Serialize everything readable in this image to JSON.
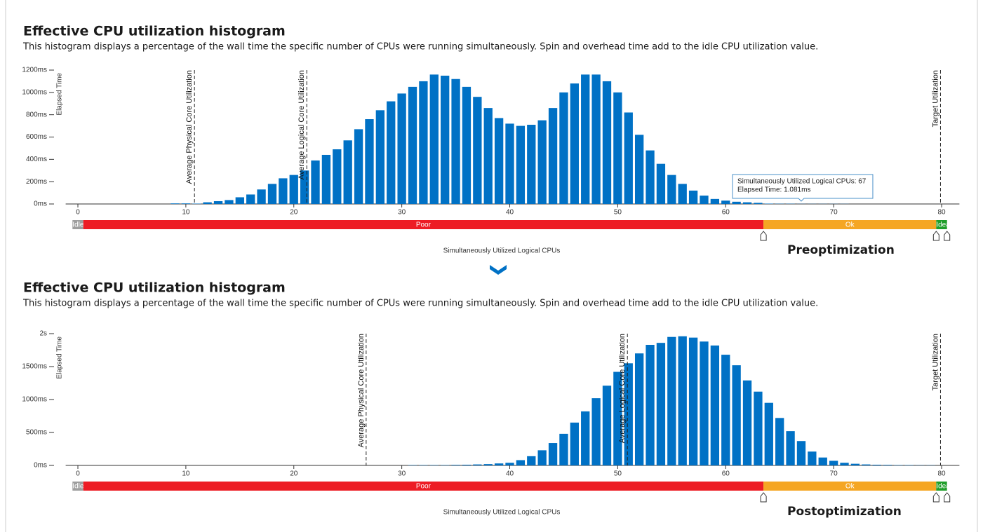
{
  "chart_data": [
    {
      "type": "bar",
      "title": "Effective CPU utilization histogram",
      "subtitle": "This histogram displays a percentage of the wall time the specific number of CPUs were running simultaneously. Spin and overhead time add to the idle CPU utilization value.",
      "xlabel": "Simultaneously Utilized Logical CPUs",
      "ylabel": "Elapsed Time",
      "caption": "Preoptimization",
      "color": "#0071c5",
      "x": [
        9,
        10,
        11,
        12,
        13,
        14,
        15,
        16,
        17,
        18,
        19,
        20,
        21,
        22,
        23,
        24,
        25,
        26,
        27,
        28,
        29,
        30,
        31,
        32,
        33,
        34,
        35,
        36,
        37,
        38,
        39,
        40,
        41,
        42,
        43,
        44,
        45,
        46,
        47,
        48,
        49,
        50,
        51,
        52,
        53,
        54,
        55,
        56,
        57,
        58,
        59,
        60,
        61,
        62,
        63,
        64,
        65,
        66,
        67,
        68,
        69,
        70,
        71
      ],
      "values": [
        5,
        5,
        3,
        15,
        25,
        35,
        60,
        85,
        130,
        180,
        230,
        260,
        300,
        390,
        440,
        490,
        570,
        670,
        760,
        840,
        920,
        990,
        1050,
        1100,
        1160,
        1150,
        1120,
        1050,
        960,
        860,
        770,
        720,
        700,
        710,
        750,
        860,
        1000,
        1080,
        1160,
        1160,
        1100,
        1000,
        820,
        620,
        480,
        360,
        260,
        180,
        120,
        75,
        45,
        30,
        20,
        15,
        10,
        3,
        2,
        2,
        1.081,
        1,
        1,
        1,
        1
      ],
      "xlim": [
        -1,
        81
      ],
      "xticks": [
        0,
        10,
        20,
        30,
        40,
        50,
        60,
        70,
        80
      ],
      "ylim": [
        0,
        1200
      ],
      "yticks": [
        {
          "value": 0,
          "label": "0ms"
        },
        {
          "value": 200,
          "label": "200ms"
        },
        {
          "value": 400,
          "label": "400ms"
        },
        {
          "value": 600,
          "label": "600ms"
        },
        {
          "value": 800,
          "label": "800ms"
        },
        {
          "value": 1000,
          "label": "1000ms"
        },
        {
          "value": 1200,
          "label": "1200ms"
        }
      ],
      "annotations": [
        {
          "x": 10.8,
          "label": "Average Physical Core Utilization"
        },
        {
          "x": 21.2,
          "label": "Average Logical Core Utilization"
        },
        {
          "x": 79.9,
          "label": "Target Utilization"
        }
      ],
      "bands": [
        {
          "label": "Idle",
          "from": -0.5,
          "to": 0.5,
          "color": "#9e9e9e"
        },
        {
          "label": "Poor",
          "from": 0.5,
          "to": 63.5,
          "color": "#ed1c24"
        },
        {
          "label": "Ok",
          "from": 63.5,
          "to": 79.5,
          "color": "#f5a623"
        },
        {
          "label": "Ideal",
          "from": 79.5,
          "to": 80.5,
          "color": "#1f9e2a"
        }
      ],
      "tooltip": {
        "x": 67,
        "lines": [
          "Simultaneously Utilized Logical CPUs: 67",
          "Elapsed Time: 1.081ms"
        ]
      }
    },
    {
      "type": "bar",
      "title": "Effective CPU utilization histogram",
      "subtitle": "This histogram displays a percentage of the wall time the specific number of CPUs were running simultaneously. Spin and overhead time add to the idle CPU utilization value.",
      "xlabel": "Simultaneously Utilized Logical CPUs",
      "ylabel": "Elapsed Time",
      "caption": "Postoptimization",
      "color": "#0071c5",
      "x": [
        31,
        32,
        33,
        34,
        35,
        36,
        37,
        38,
        39,
        40,
        41,
        42,
        43,
        44,
        45,
        46,
        47,
        48,
        49,
        50,
        51,
        52,
        53,
        54,
        55,
        56,
        57,
        58,
        59,
        60,
        61,
        62,
        63,
        64,
        65,
        66,
        67,
        68,
        69,
        70,
        71,
        72,
        73,
        74,
        75,
        76,
        77,
        78,
        79
      ],
      "values": [
        5,
        5,
        5,
        5,
        8,
        10,
        15,
        20,
        30,
        40,
        80,
        140,
        230,
        340,
        480,
        650,
        820,
        1020,
        1210,
        1420,
        1550,
        1700,
        1830,
        1860,
        1950,
        1960,
        1940,
        1880,
        1820,
        1680,
        1520,
        1290,
        1120,
        950,
        720,
        520,
        370,
        210,
        120,
        70,
        40,
        25,
        15,
        10,
        8,
        5,
        5,
        3,
        3
      ],
      "xlim": [
        -1,
        81
      ],
      "xticks": [
        0,
        10,
        20,
        30,
        40,
        50,
        60,
        70,
        80
      ],
      "ylim": [
        0,
        2000
      ],
      "yticks": [
        {
          "value": 0,
          "label": "0ms"
        },
        {
          "value": 500,
          "label": "500ms"
        },
        {
          "value": 1000,
          "label": "1000ms"
        },
        {
          "value": 1500,
          "label": "1500ms"
        },
        {
          "value": 2000,
          "label": "2s"
        }
      ],
      "annotations": [
        {
          "x": 26.7,
          "label": "Average Physical Core Utilization"
        },
        {
          "x": 50.9,
          "label": "Average Logical Core Utilization"
        },
        {
          "x": 79.9,
          "label": "Target Utilization"
        }
      ],
      "bands": [
        {
          "label": "Idle",
          "from": -0.5,
          "to": 0.5,
          "color": "#9e9e9e"
        },
        {
          "label": "Poor",
          "from": 0.5,
          "to": 63.5,
          "color": "#ed1c24"
        },
        {
          "label": "Ok",
          "from": 63.5,
          "to": 79.5,
          "color": "#f5a623"
        },
        {
          "label": "Ideal",
          "from": 79.5,
          "to": 80.5,
          "color": "#1f9e2a"
        }
      ]
    }
  ]
}
